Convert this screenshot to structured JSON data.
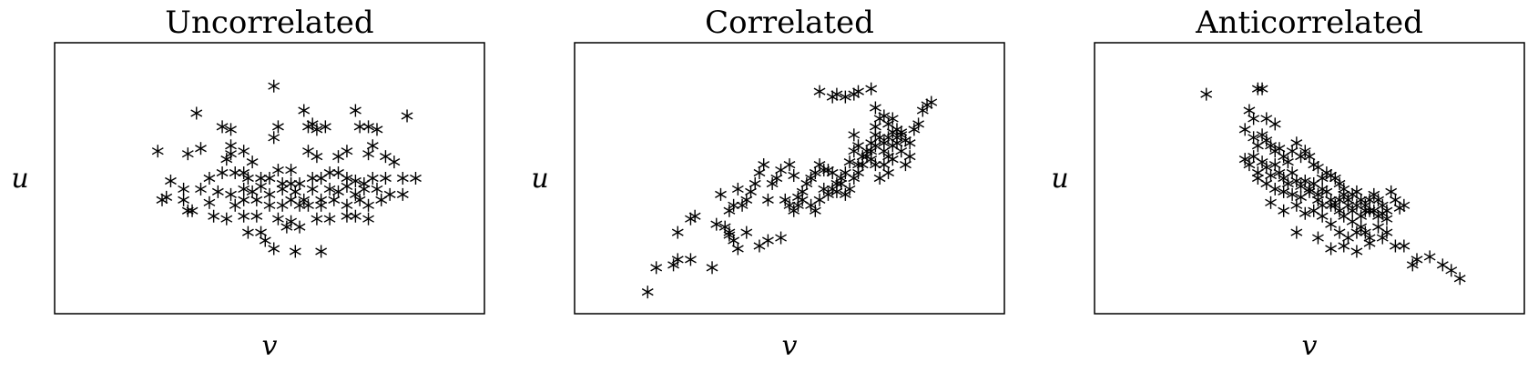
{
  "chart_data": [
    {
      "type": "scatter",
      "title": "Uncorrelated",
      "xlabel": "v",
      "ylabel": "u",
      "xlim": [
        0,
        100
      ],
      "ylim": [
        0,
        100
      ],
      "marker": "asterisk",
      "points": [
        [
          51,
          84
        ],
        [
          58,
          75
        ],
        [
          51,
          65
        ],
        [
          33,
          74
        ],
        [
          39,
          69
        ],
        [
          41,
          62
        ],
        [
          41,
          68
        ],
        [
          52,
          69
        ],
        [
          59,
          69
        ],
        [
          60,
          70
        ],
        [
          61,
          68
        ],
        [
          63,
          69
        ],
        [
          70,
          75
        ],
        [
          71,
          69
        ],
        [
          73,
          69
        ],
        [
          75,
          68
        ],
        [
          82,
          73
        ],
        [
          74,
          62
        ],
        [
          24,
          60
        ],
        [
          31,
          59
        ],
        [
          34,
          61
        ],
        [
          41,
          59
        ],
        [
          44,
          60
        ],
        [
          40,
          57
        ],
        [
          44,
          52
        ],
        [
          46,
          56
        ],
        [
          52,
          53
        ],
        [
          55,
          53
        ],
        [
          59,
          60
        ],
        [
          61,
          58
        ],
        [
          66,
          58
        ],
        [
          68,
          60
        ],
        [
          73,
          59
        ],
        [
          77,
          58
        ],
        [
          79,
          56
        ],
        [
          27,
          49
        ],
        [
          36,
          50
        ],
        [
          39,
          52
        ],
        [
          42,
          52
        ],
        [
          45,
          50
        ],
        [
          48,
          50
        ],
        [
          50,
          50
        ],
        [
          53,
          48
        ],
        [
          55,
          48
        ],
        [
          57,
          48
        ],
        [
          60,
          50
        ],
        [
          62,
          50
        ],
        [
          64,
          52
        ],
        [
          66,
          52
        ],
        [
          68,
          50
        ],
        [
          70,
          49
        ],
        [
          72,
          48
        ],
        [
          74,
          50
        ],
        [
          77,
          50
        ],
        [
          81,
          50
        ],
        [
          84,
          50
        ],
        [
          30,
          46
        ],
        [
          34,
          46
        ],
        [
          38,
          45
        ],
        [
          41,
          44
        ],
        [
          44,
          46
        ],
        [
          46,
          45
        ],
        [
          48,
          47
        ],
        [
          50,
          44
        ],
        [
          53,
          46
        ],
        [
          56,
          45
        ],
        [
          58,
          42
        ],
        [
          60,
          46
        ],
        [
          62,
          42
        ],
        [
          64,
          46
        ],
        [
          66,
          45
        ],
        [
          68,
          47
        ],
        [
          70,
          44
        ],
        [
          72,
          46
        ],
        [
          75,
          46
        ],
        [
          26,
          43
        ],
        [
          30,
          42
        ],
        [
          36,
          41
        ],
        [
          42,
          40
        ],
        [
          44,
          42
        ],
        [
          47,
          42
        ],
        [
          50,
          40
        ],
        [
          53,
          40
        ],
        [
          55,
          42
        ],
        [
          57,
          40
        ],
        [
          59,
          40
        ],
        [
          62,
          40
        ],
        [
          65,
          42
        ],
        [
          68,
          40
        ],
        [
          71,
          42
        ],
        [
          73,
          40
        ],
        [
          76,
          42
        ],
        [
          78,
          44
        ],
        [
          81,
          44
        ],
        [
          25,
          42
        ],
        [
          31,
          38
        ],
        [
          37,
          36
        ],
        [
          44,
          36
        ],
        [
          47,
          36
        ],
        [
          52,
          35
        ],
        [
          55,
          34
        ],
        [
          61,
          35
        ],
        [
          64,
          35
        ],
        [
          68,
          36
        ],
        [
          70,
          36
        ],
        [
          73,
          35
        ],
        [
          32,
          38
        ],
        [
          40,
          35
        ],
        [
          48,
          30
        ],
        [
          54,
          32
        ],
        [
          57,
          32
        ],
        [
          45,
          30
        ],
        [
          49,
          27
        ],
        [
          51,
          24
        ],
        [
          56,
          23
        ],
        [
          62,
          23
        ]
      ]
    },
    {
      "type": "scatter",
      "title": "Correlated",
      "xlabel": "v",
      "ylabel": "u",
      "xlim": [
        0,
        100
      ],
      "ylim": [
        0,
        100
      ],
      "marker": "asterisk",
      "points": [
        [
          17,
          8
        ],
        [
          19,
          17
        ],
        [
          23,
          18
        ],
        [
          24,
          20
        ],
        [
          27,
          20
        ],
        [
          32,
          17
        ],
        [
          24,
          30
        ],
        [
          27,
          35
        ],
        [
          28,
          36
        ],
        [
          33,
          33
        ],
        [
          35,
          32
        ],
        [
          36,
          29
        ],
        [
          36,
          30
        ],
        [
          37,
          27
        ],
        [
          38,
          24
        ],
        [
          40,
          30
        ],
        [
          43,
          25
        ],
        [
          45,
          27
        ],
        [
          48,
          28
        ],
        [
          34,
          44
        ],
        [
          36,
          38
        ],
        [
          37,
          40
        ],
        [
          38,
          46
        ],
        [
          39,
          40
        ],
        [
          40,
          42
        ],
        [
          41,
          45
        ],
        [
          42,
          48
        ],
        [
          43,
          52
        ],
        [
          44,
          55
        ],
        [
          45,
          42
        ],
        [
          46,
          48
        ],
        [
          47,
          50
        ],
        [
          48,
          53
        ],
        [
          50,
          55
        ],
        [
          51,
          51
        ],
        [
          52,
          43
        ],
        [
          53,
          45
        ],
        [
          54,
          48
        ],
        [
          55,
          50
        ],
        [
          56,
          52
        ],
        [
          57,
          55
        ],
        [
          58,
          53
        ],
        [
          59,
          53
        ],
        [
          60,
          52
        ],
        [
          61,
          48
        ],
        [
          62,
          50
        ],
        [
          63,
          52
        ],
        [
          64,
          56
        ],
        [
          65,
          60
        ],
        [
          66,
          55
        ],
        [
          67,
          58
        ],
        [
          68,
          60
        ],
        [
          69,
          57
        ],
        [
          70,
          55
        ],
        [
          71,
          50
        ],
        [
          72,
          60
        ],
        [
          73,
          58
        ],
        [
          74,
          62
        ],
        [
          75,
          63
        ],
        [
          76,
          60
        ],
        [
          77,
          55
        ],
        [
          78,
          58
        ],
        [
          49,
          42
        ],
        [
          50,
          40
        ],
        [
          51,
          38
        ],
        [
          52,
          40
        ],
        [
          53,
          42
        ],
        [
          55,
          40
        ],
        [
          56,
          38
        ],
        [
          57,
          42
        ],
        [
          58,
          46
        ],
        [
          59,
          44
        ],
        [
          60,
          46
        ],
        [
          61,
          45
        ],
        [
          62,
          48
        ],
        [
          63,
          44
        ],
        [
          64,
          46
        ],
        [
          65,
          50
        ],
        [
          66,
          52
        ],
        [
          67,
          55
        ],
        [
          68,
          58
        ],
        [
          69,
          60
        ],
        [
          70,
          62
        ],
        [
          71,
          65
        ],
        [
          72,
          63
        ],
        [
          73,
          65
        ],
        [
          74,
          67
        ],
        [
          75,
          68
        ],
        [
          76,
          66
        ],
        [
          57,
          82
        ],
        [
          60,
          80
        ],
        [
          61,
          81
        ],
        [
          63,
          80
        ],
        [
          65,
          81
        ],
        [
          66,
          82
        ],
        [
          69,
          83
        ],
        [
          70,
          76
        ],
        [
          71,
          72
        ],
        [
          72,
          73
        ],
        [
          73,
          70
        ],
        [
          74,
          72
        ],
        [
          75,
          65
        ],
        [
          76,
          67
        ],
        [
          77,
          64
        ],
        [
          78,
          63
        ],
        [
          79,
          68
        ],
        [
          80,
          70
        ],
        [
          81,
          75
        ],
        [
          82,
          77
        ],
        [
          83,
          78
        ],
        [
          70,
          69
        ],
        [
          69,
          63
        ],
        [
          70,
          66
        ],
        [
          72,
          55
        ],
        [
          73,
          52
        ],
        [
          74,
          57
        ],
        [
          65,
          66
        ],
        [
          66,
          62
        ]
      ]
    },
    {
      "type": "scatter",
      "title": "Anticorrelated",
      "xlabel": "v",
      "ylabel": "u",
      "xlim": [
        0,
        100
      ],
      "ylim": [
        0,
        100
      ],
      "marker": "asterisk",
      "points": [
        [
          26,
          81
        ],
        [
          38,
          83
        ],
        [
          39,
          83
        ],
        [
          36,
          75
        ],
        [
          37,
          72
        ],
        [
          40,
          72
        ],
        [
          42,
          70
        ],
        [
          35,
          68
        ],
        [
          37,
          65
        ],
        [
          38,
          62
        ],
        [
          39,
          66
        ],
        [
          40,
          64
        ],
        [
          41,
          62
        ],
        [
          42,
          60
        ],
        [
          43,
          61
        ],
        [
          44,
          58
        ],
        [
          45,
          56
        ],
        [
          46,
          60
        ],
        [
          47,
          63
        ],
        [
          48,
          58
        ],
        [
          49,
          60
        ],
        [
          50,
          58
        ],
        [
          51,
          55
        ],
        [
          52,
          54
        ],
        [
          53,
          50
        ],
        [
          54,
          52
        ],
        [
          55,
          51
        ],
        [
          56,
          50
        ],
        [
          57,
          48
        ],
        [
          58,
          46
        ],
        [
          59,
          42
        ],
        [
          60,
          44
        ],
        [
          61,
          45
        ],
        [
          62,
          42
        ],
        [
          63,
          40
        ],
        [
          64,
          42
        ],
        [
          65,
          44
        ],
        [
          66,
          42
        ],
        [
          67,
          40
        ],
        [
          68,
          38
        ],
        [
          69,
          45
        ],
        [
          70,
          42
        ],
        [
          71,
          39
        ],
        [
          72,
          40
        ],
        [
          35,
          57
        ],
        [
          36,
          55
        ],
        [
          37,
          58
        ],
        [
          38,
          52
        ],
        [
          39,
          56
        ],
        [
          40,
          54
        ],
        [
          41,
          51
        ],
        [
          42,
          55
        ],
        [
          43,
          52
        ],
        [
          44,
          50
        ],
        [
          45,
          48
        ],
        [
          46,
          52
        ],
        [
          47,
          49
        ],
        [
          48,
          47
        ],
        [
          49,
          49
        ],
        [
          50,
          46
        ],
        [
          51,
          48
        ],
        [
          52,
          44
        ],
        [
          53,
          46
        ],
        [
          54,
          45
        ],
        [
          55,
          42
        ],
        [
          56,
          40
        ],
        [
          57,
          42
        ],
        [
          58,
          44
        ],
        [
          59,
          40
        ],
        [
          60,
          38
        ],
        [
          61,
          40
        ],
        [
          62,
          36
        ],
        [
          63,
          38
        ],
        [
          64,
          38
        ],
        [
          65,
          38
        ],
        [
          66,
          36
        ],
        [
          67,
          37
        ],
        [
          68,
          35
        ],
        [
          38,
          50
        ],
        [
          40,
          48
        ],
        [
          42,
          46
        ],
        [
          44,
          45
        ],
        [
          46,
          44
        ],
        [
          48,
          43
        ],
        [
          50,
          45
        ],
        [
          52,
          42
        ],
        [
          53,
          40
        ],
        [
          55,
          40
        ],
        [
          57,
          38
        ],
        [
          58,
          36
        ],
        [
          60,
          34
        ],
        [
          61,
          30
        ],
        [
          62,
          32
        ],
        [
          63,
          30
        ],
        [
          64,
          28
        ],
        [
          66,
          32
        ],
        [
          68,
          30
        ],
        [
          41,
          41
        ],
        [
          44,
          38
        ],
        [
          47,
          40
        ],
        [
          49,
          37
        ],
        [
          51,
          38
        ],
        [
          53,
          36
        ],
        [
          55,
          33
        ],
        [
          57,
          30
        ],
        [
          59,
          28
        ],
        [
          47,
          30
        ],
        [
          52,
          28
        ],
        [
          55,
          24
        ],
        [
          58,
          25
        ],
        [
          61,
          23
        ],
        [
          64,
          26
        ],
        [
          67,
          28
        ],
        [
          70,
          25
        ],
        [
          72,
          25
        ],
        [
          75,
          20
        ],
        [
          78,
          21
        ],
        [
          81,
          18
        ],
        [
          83,
          16
        ],
        [
          85,
          13
        ],
        [
          74,
          18
        ]
      ]
    }
  ]
}
